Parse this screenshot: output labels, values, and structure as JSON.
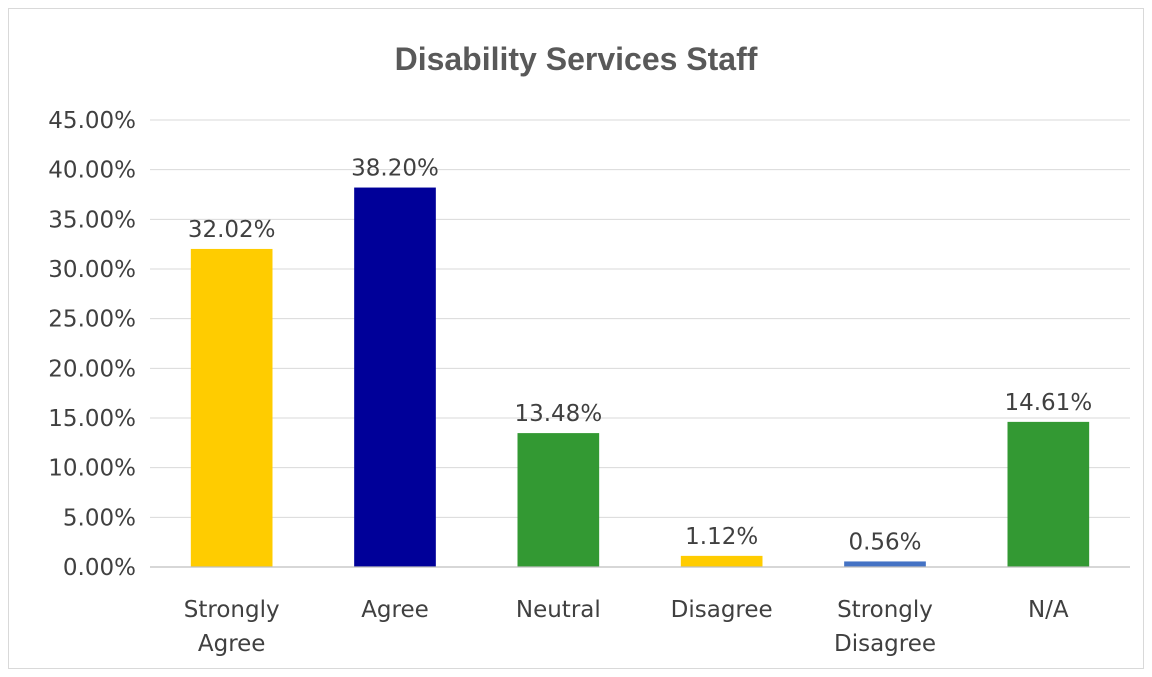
{
  "chart_data": {
    "type": "bar",
    "title": "Disability Services Staff",
    "xlabel": "",
    "ylabel": "",
    "categories": [
      [
        "Strongly",
        "Agree"
      ],
      [
        "Agree"
      ],
      [
        "Neutral"
      ],
      [
        "Disagree"
      ],
      [
        "Strongly",
        "Disagree"
      ],
      [
        "N/A"
      ]
    ],
    "values": [
      32.02,
      38.2,
      13.48,
      1.12,
      0.56,
      14.61
    ],
    "value_labels": [
      "32.02%",
      "38.20%",
      "13.48%",
      "1.12%",
      "0.56%",
      "14.61%"
    ],
    "bar_colors": [
      "#FFCC00",
      "#000099",
      "#339933",
      "#FFCC00",
      "#4472C4",
      "#339933"
    ],
    "ylim": [
      0,
      45
    ],
    "yticks": [
      0,
      5,
      10,
      15,
      20,
      25,
      30,
      35,
      40,
      45
    ],
    "ytick_labels": [
      "0.00%",
      "5.00%",
      "10.00%",
      "15.00%",
      "20.00%",
      "25.00%",
      "30.00%",
      "35.00%",
      "40.00%",
      "45.00%"
    ],
    "grid": true,
    "legend": "none"
  }
}
